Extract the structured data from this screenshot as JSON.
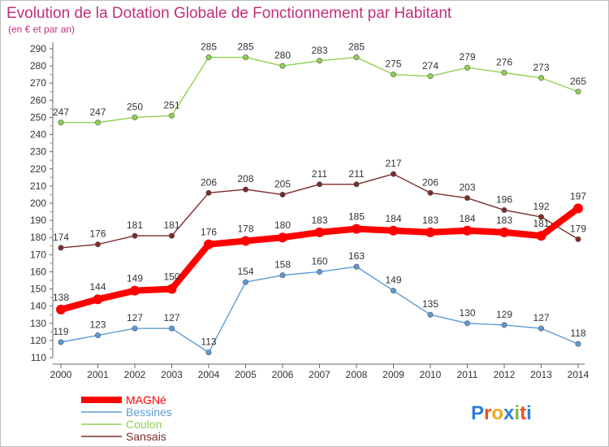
{
  "chart_data": {
    "type": "line",
    "title": "Evolution de la Dotation Globale de Fonctionnement par Habitant",
    "subtitle": "(en € et par an)",
    "xlabel": "",
    "ylabel": "",
    "categories": [
      "2000",
      "2001",
      "2002",
      "2003",
      "2004",
      "2005",
      "2006",
      "2007",
      "2008",
      "2009",
      "2010",
      "2011",
      "2012",
      "2013",
      "2014"
    ],
    "ylim": [
      110,
      290
    ],
    "ytick_step": 10,
    "grid": false,
    "legend_position": "bottom-left",
    "series": [
      {
        "name": "MAGNé",
        "color": "#ff0000",
        "values": [
          138,
          144,
          149,
          150,
          176,
          178,
          180,
          183,
          185,
          184,
          183,
          184,
          183,
          181,
          197
        ],
        "emphasis": true
      },
      {
        "name": "Bessines",
        "color": "#5b9bd5",
        "values": [
          119,
          123,
          127,
          127,
          113,
          154,
          158,
          160,
          163,
          149,
          135,
          130,
          129,
          127,
          118
        ]
      },
      {
        "name": "Coulon",
        "color": "#8fd14f",
        "values": [
          247,
          247,
          250,
          251,
          285,
          285,
          280,
          283,
          285,
          275,
          274,
          279,
          276,
          273,
          265
        ]
      },
      {
        "name": "Sansais",
        "color": "#7b2c2c",
        "values": [
          174,
          176,
          181,
          181,
          206,
          208,
          205,
          211,
          211,
          217,
          206,
          203,
          196,
          192,
          179
        ]
      }
    ],
    "title_color": "#c0307a",
    "logo_text": "Proxiti",
    "logo_colors": [
      "#2f7fd6",
      "#e8502a",
      "#f2a81d",
      "#2f7fd6",
      "#7fb93a",
      "#e8502a",
      "#2f7fd6"
    ]
  }
}
